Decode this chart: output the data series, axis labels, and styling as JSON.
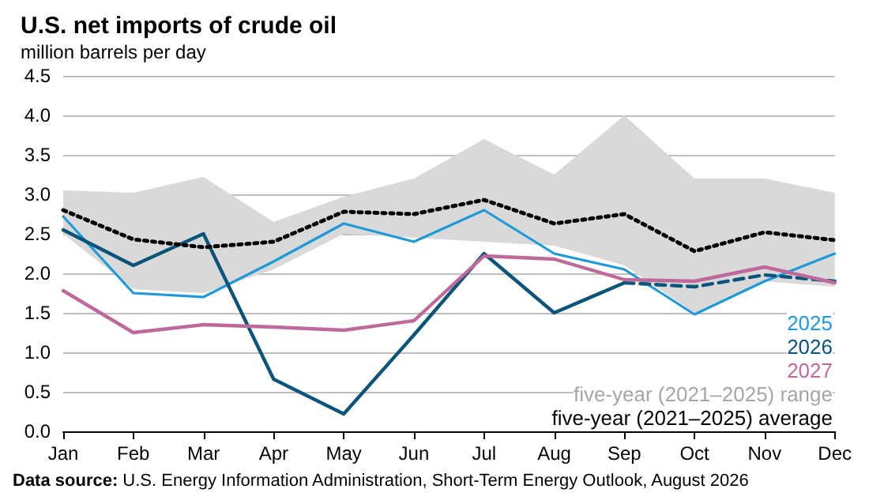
{
  "chart_data": {
    "type": "line",
    "title": "U.S. net imports of crude oil",
    "subtitle": "million barrels per day",
    "categories": [
      "Jan",
      "Feb",
      "Mar",
      "Apr",
      "May",
      "Jun",
      "Jul",
      "Aug",
      "Sep",
      "Oct",
      "Nov",
      "Dec"
    ],
    "series": [
      {
        "name": "2025",
        "color": "#1f9ad6",
        "values": [
          2.72,
          1.75,
          1.7,
          2.15,
          2.63,
          2.4,
          2.8,
          2.25,
          2.05,
          1.48,
          1.9,
          2.25
        ]
      },
      {
        "name": "2026",
        "color": "#0b5479",
        "values": [
          2.55,
          2.1,
          2.5,
          0.66,
          0.22,
          1.22,
          2.25,
          1.5,
          1.88,
          null,
          null,
          null
        ]
      },
      {
        "color": "#0b5479",
        "line_style": "dashed",
        "values": [
          null,
          null,
          null,
          null,
          null,
          null,
          null,
          null,
          1.88,
          1.83,
          1.98,
          1.9
        ]
      },
      {
        "name": "2027",
        "color": "#bd6a9b",
        "values": [
          1.78,
          1.25,
          1.35,
          1.32,
          1.28,
          1.4,
          2.22,
          2.18,
          1.92,
          1.9,
          2.08,
          1.88
        ]
      },
      {
        "name": "five-year (2021–2025) average",
        "color": "#000000",
        "line_style": "dotted",
        "values": [
          2.8,
          2.43,
          2.33,
          2.4,
          2.78,
          2.75,
          2.93,
          2.63,
          2.75,
          2.28,
          2.52,
          2.42
        ],
        "lower": [
          2.5,
          1.8,
          1.75,
          2.05,
          2.5,
          2.45,
          2.4,
          2.35,
          2.1,
          1.5,
          1.9,
          1.83
        ],
        "upper": [
          3.05,
          3.02,
          3.22,
          2.65,
          2.97,
          3.2,
          3.7,
          3.25,
          4.0,
          3.2,
          3.2,
          3.02
        ]
      }
    ],
    "ylim": [
      0,
      4.5
    ],
    "yticks": [
      {
        "value": 0,
        "label": "0.0"
      },
      0.5,
      {
        "value": 1,
        "label": "1.0"
      },
      1.5,
      {
        "value": 2,
        "label": "2.0"
      },
      2.5,
      {
        "value": 3,
        "label": "3.0"
      },
      3.5,
      {
        "value": 4,
        "label": "4.0"
      },
      4.5
    ],
    "grid": "y",
    "legend": "bottom right",
    "marker": "none",
    "annotations": [
      "Data source: U.S. Energy Information Administration, Short-Term Energy Outlook, August 2026",
      "five-year (2021–2025) range"
    ]
  }
}
